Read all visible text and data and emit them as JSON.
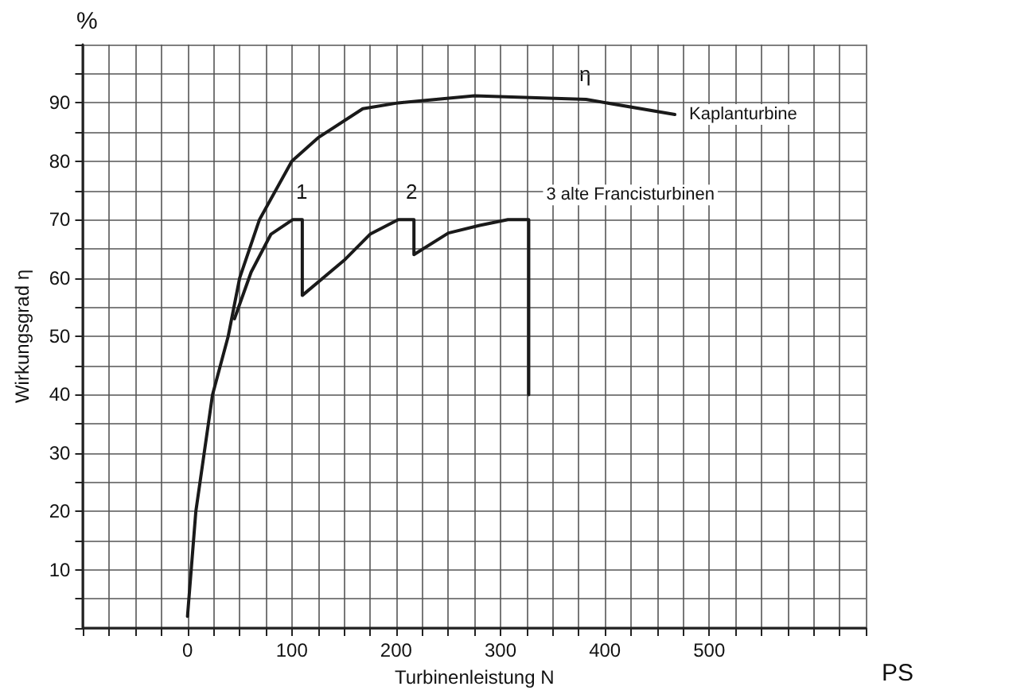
{
  "chart_data": {
    "type": "line",
    "xlabel": "Turbinenleistung N",
    "ylabel": "Wirkungsgrad η",
    "series": [
      {
        "name": "Kaplanturbine",
        "color": "#1a1a1a",
        "x": [
          0,
          8,
          16,
          24,
          39,
          50,
          69,
          100,
          125,
          168,
          202,
          275,
          382,
          467
        ],
        "values": [
          2,
          20,
          30,
          40,
          50,
          60,
          70,
          80,
          84,
          89,
          90,
          91.2,
          90.6,
          88
        ]
      },
      {
        "name": "3 alte Francisturbinen",
        "color": "#1a1a1a",
        "x": [
          45,
          61,
          80,
          101,
          110,
          110,
          150,
          175,
          202,
          217,
          217,
          250,
          280,
          307,
          327,
          327
        ],
        "values": [
          53,
          61,
          67.5,
          70,
          70,
          57,
          63,
          67.5,
          70,
          70,
          64,
          67.7,
          69,
          70,
          70,
          40
        ]
      }
    ],
    "annotations": [
      "%",
      "PS",
      "η",
      "1",
      "2"
    ],
    "xlim": [
      -100,
      650
    ],
    "xticks": [
      {
        "value": -100,
        "label": null
      },
      {
        "value": -75,
        "label": null
      },
      {
        "value": -50,
        "label": null
      },
      {
        "value": -25,
        "label": null
      },
      0,
      {
        "value": 25,
        "label": null
      },
      {
        "value": 50,
        "label": null
      },
      {
        "value": 75,
        "label": null
      },
      100,
      {
        "value": 125,
        "label": null
      },
      {
        "value": 150,
        "label": null
      },
      {
        "value": 175,
        "label": null
      },
      200,
      {
        "value": 225,
        "label": null
      },
      {
        "value": 250,
        "label": null
      },
      {
        "value": 275,
        "label": null
      },
      300,
      {
        "value": 325,
        "label": null
      },
      {
        "value": 350,
        "label": null
      },
      {
        "value": 375,
        "label": null
      },
      400,
      {
        "value": 425,
        "label": null
      },
      {
        "value": 450,
        "label": null
      },
      {
        "value": 475,
        "label": null
      },
      500,
      {
        "value": 525,
        "label": null
      },
      {
        "value": 550,
        "label": null
      },
      {
        "value": 575,
        "label": null
      },
      {
        "value": 600,
        "label": null
      },
      {
        "value": 625,
        "label": null
      },
      {
        "value": 650,
        "label": null
      }
    ],
    "ylim": [
      0,
      100
    ],
    "yticks": [
      {
        "value": 0,
        "label": null
      },
      {
        "value": 5,
        "label": null
      },
      10,
      {
        "value": 15,
        "label": null
      },
      20,
      {
        "value": 25,
        "label": null
      },
      30,
      {
        "value": 35,
        "label": null
      },
      40,
      {
        "value": 45,
        "label": null
      },
      50,
      {
        "value": 55,
        "label": null
      },
      60,
      {
        "value": 65,
        "label": null
      },
      70,
      {
        "value": 75,
        "label": null
      },
      80,
      {
        "value": 85,
        "label": null
      },
      90,
      {
        "value": 95,
        "label": null
      },
      {
        "value": 100,
        "label": null
      }
    ],
    "grid": true,
    "legend": false,
    "marker": "none",
    "line_style": "solid"
  }
}
